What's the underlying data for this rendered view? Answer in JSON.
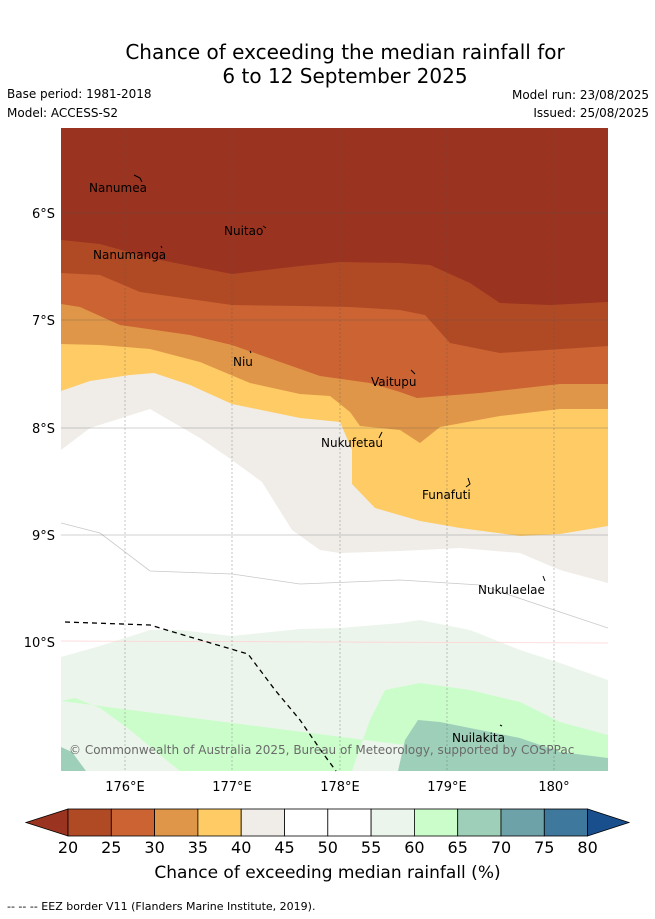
{
  "title": {
    "line1": "Chance of exceeding the median rainfall for",
    "line2": "6 to 12 September 2025"
  },
  "meta": {
    "base_period": "Base period: 1981-2018",
    "model": "Model: ACCESS-S2",
    "model_run": "Model run: 23/08/2025",
    "issued": "Issued: 25/08/2025"
  },
  "map": {
    "lat_ticks": [
      "6°S",
      "7°S",
      "8°S",
      "9°S",
      "10°S"
    ],
    "lon_ticks": [
      "176°E",
      "177°E",
      "178°E",
      "179°E",
      "180°"
    ],
    "places": [
      "Nanumea",
      "Nuitao",
      "Nanumanga",
      "Niu",
      "Vaitupu",
      "Nukufetau",
      "Funafuti",
      "Nukulaelae",
      "Nuilakita"
    ],
    "copyright": "© Commonwealth of Australia 2025, Bureau of Meteorology, supported by COSPPac",
    "eez_line": "dashed"
  },
  "colorbar": {
    "ticks": [
      "20",
      "25",
      "30",
      "35",
      "40",
      "45",
      "50",
      "55",
      "60",
      "65",
      "70",
      "75",
      "80"
    ],
    "colors": [
      "#9a3320",
      "#b04a25",
      "#cb6333",
      "#e09648",
      "#fecb65",
      "#f0ede8",
      "#ffffff",
      "#ffffff",
      "#ecf5ec",
      "#cbfdcb",
      "#9ecfb9",
      "#6ea2a9",
      "#3f789d",
      "#1a4f8d"
    ],
    "title": "Chance of exceeding median rainfall (%)"
  },
  "footer": "--  --  -- EEZ border V11 (Flanders Marine Institute, 2019)."
}
